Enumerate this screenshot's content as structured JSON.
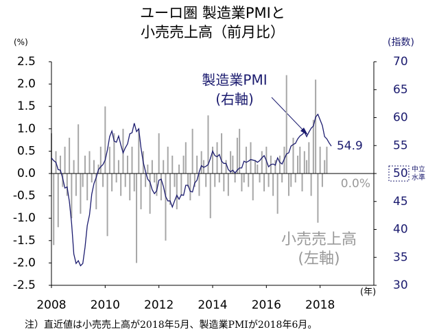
{
  "chart_data": {
    "type": "bar-line",
    "title": [
      "ユーロ圏 製造業PMIと",
      "小売売上高（前月比）"
    ],
    "ylabel": "(%)",
    "y2label": "(指数)",
    "xlabel": "(年)",
    "note": "注）直近値は小売売上高が2018年5月、製造業PMIが2018年6月。",
    "neutral_level": {
      "value": 50,
      "label": [
        "中立",
        "水準"
      ]
    },
    "xlim": [
      2008,
      2020
    ],
    "xticks": [
      2008,
      2010,
      2012,
      2014,
      2016,
      2018
    ],
    "ylim": [
      -2.5,
      2.5
    ],
    "yticks": [
      {
        "value": -2.5,
        "label": "-2.5"
      },
      {
        "value": -2,
        "label": "-2.0"
      },
      {
        "value": -1.5,
        "label": "-1.5"
      },
      {
        "value": -1,
        "label": "-1.0"
      },
      {
        "value": -0.5,
        "label": "-0.5"
      },
      {
        "value": 0,
        "label": "0.0"
      },
      {
        "value": 0.5,
        "label": "0.5"
      },
      {
        "value": 1,
        "label": "1.0"
      },
      {
        "value": 1.5,
        "label": "1.5"
      },
      {
        "value": 2,
        "label": "2.0"
      },
      {
        "value": 2.5,
        "label": "2.5"
      }
    ],
    "y2lim": [
      30,
      70
    ],
    "y2ticks": [
      30,
      35,
      40,
      45,
      50,
      55,
      60,
      65,
      70
    ],
    "x": [
      2008,
      2008.083,
      2008.167,
      2008.25,
      2008.333,
      2008.417,
      2008.5,
      2008.583,
      2008.667,
      2008.75,
      2008.833,
      2008.917,
      2009,
      2009.083,
      2009.167,
      2009.25,
      2009.333,
      2009.417,
      2009.5,
      2009.583,
      2009.667,
      2009.75,
      2009.833,
      2009.917,
      2010,
      2010.083,
      2010.167,
      2010.25,
      2010.333,
      2010.417,
      2010.5,
      2010.583,
      2010.667,
      2010.75,
      2010.833,
      2010.917,
      2011,
      2011.083,
      2011.167,
      2011.25,
      2011.333,
      2011.417,
      2011.5,
      2011.583,
      2011.667,
      2011.75,
      2011.833,
      2011.917,
      2012,
      2012.083,
      2012.167,
      2012.25,
      2012.333,
      2012.417,
      2012.5,
      2012.583,
      2012.667,
      2012.75,
      2012.833,
      2012.917,
      2013,
      2013.083,
      2013.167,
      2013.25,
      2013.333,
      2013.417,
      2013.5,
      2013.583,
      2013.667,
      2013.75,
      2013.833,
      2013.917,
      2014,
      2014.083,
      2014.167,
      2014.25,
      2014.333,
      2014.417,
      2014.5,
      2014.583,
      2014.667,
      2014.75,
      2014.833,
      2014.917,
      2015,
      2015.083,
      2015.167,
      2015.25,
      2015.333,
      2015.417,
      2015.5,
      2015.583,
      2015.667,
      2015.75,
      2015.833,
      2015.917,
      2016,
      2016.083,
      2016.167,
      2016.25,
      2016.333,
      2016.417,
      2016.5,
      2016.583,
      2016.667,
      2016.75,
      2016.833,
      2016.917,
      2017,
      2017.083,
      2017.167,
      2017.25,
      2017.333,
      2017.417,
      2017.5,
      2017.583,
      2017.667,
      2017.75,
      2017.833,
      2017.917,
      2018,
      2018.083,
      2018.167,
      2018.25,
      2018.333,
      2018.417
    ],
    "series": [
      {
        "name": "小売売上高",
        "axis_note": "(左軸)",
        "color": "#a6a6a6",
        "axis": "y",
        "values": [
          0.9,
          -1.6,
          0.5,
          -1.2,
          0.4,
          -0.3,
          0.6,
          -0.5,
          0.8,
          -1.0,
          0.3,
          -0.5,
          1.1,
          -0.9,
          -0.3,
          0.4,
          -0.6,
          0.5,
          -0.2,
          0.3,
          -0.8,
          0.2,
          0.6,
          -0.3,
          1.5,
          -1.4,
          0.6,
          -0.4,
          0.9,
          -0.2,
          0.3,
          -0.5,
          1.0,
          -0.3,
          0.4,
          -0.6,
          0.6,
          -0.4,
          -2.0,
          1.0,
          -0.8,
          0.5,
          -0.3,
          0.2,
          -0.9,
          0.3,
          -0.2,
          -0.5,
          0.9,
          -0.6,
          0.3,
          -1.5,
          0.6,
          -0.7,
          0.4,
          -0.3,
          -0.8,
          0.2,
          -0.5,
          0.4,
          0.7,
          -0.3,
          -0.6,
          1.0,
          -0.3,
          0.4,
          -0.5,
          0.5,
          0.3,
          -0.3,
          1.3,
          -1.0,
          0.6,
          -0.3,
          0.7,
          -0.2,
          0.9,
          -0.4,
          0.3,
          -0.5,
          0.5,
          0.4,
          -0.2,
          0.8,
          1.0,
          -0.4,
          -0.2,
          0.6,
          -0.3,
          0.7,
          -0.6,
          0.3,
          0.2,
          -0.2,
          0.5,
          -0.4,
          0.6,
          -0.3,
          0.4,
          -0.5,
          0.3,
          -0.9,
          0.4,
          -0.2,
          0.6,
          2.2,
          -0.5,
          -0.3,
          0.8,
          -0.2,
          0.4,
          0.6,
          -0.4,
          0.5,
          0.3,
          0.7,
          -0.5,
          1.2,
          2.1,
          -1.1,
          0.6,
          -0.3,
          0.3,
          0.6,
          0.0,
          null
        ],
        "value_labels": {
          "124": "0.0%"
        }
      },
      {
        "name": "製造業PMI",
        "axis_note": "(右軸)",
        "color": "#1a1a6e",
        "axis": "y2",
        "values": [
          52.8,
          52.3,
          52.0,
          50.7,
          50.6,
          49.2,
          47.4,
          47.6,
          45.0,
          41.1,
          35.6,
          33.9,
          34.4,
          33.5,
          33.9,
          36.8,
          40.7,
          42.6,
          46.3,
          48.2,
          49.3,
          50.7,
          51.2,
          51.6,
          52.4,
          54.2,
          56.6,
          57.6,
          55.8,
          55.6,
          56.7,
          55.1,
          53.7,
          54.6,
          55.3,
          57.1,
          57.3,
          59.0,
          57.5,
          58.0,
          54.6,
          52.0,
          50.4,
          49.0,
          48.5,
          47.1,
          46.4,
          46.9,
          48.8,
          49.0,
          47.7,
          45.9,
          45.1,
          45.1,
          44.0,
          45.1,
          46.1,
          45.4,
          46.2,
          46.1,
          47.9,
          47.9,
          46.8,
          46.7,
          48.3,
          48.8,
          50.3,
          51.4,
          51.1,
          51.3,
          51.6,
          52.7,
          54.0,
          53.2,
          53.0,
          53.4,
          52.2,
          51.8,
          51.8,
          50.7,
          50.3,
          50.6,
          50.1,
          50.6,
          51.0,
          51.0,
          52.2,
          52.0,
          52.2,
          52.5,
          52.4,
          52.3,
          52.0,
          52.3,
          52.8,
          53.2,
          52.3,
          51.2,
          51.6,
          51.7,
          51.5,
          52.8,
          52.0,
          51.7,
          52.6,
          53.5,
          53.7,
          54.9,
          55.2,
          55.4,
          56.2,
          56.7,
          57.0,
          57.4,
          56.6,
          57.4,
          58.1,
          58.5,
          60.1,
          60.6,
          59.6,
          58.6,
          56.6,
          56.2,
          55.5,
          54.9
        ]
      }
    ]
  }
}
